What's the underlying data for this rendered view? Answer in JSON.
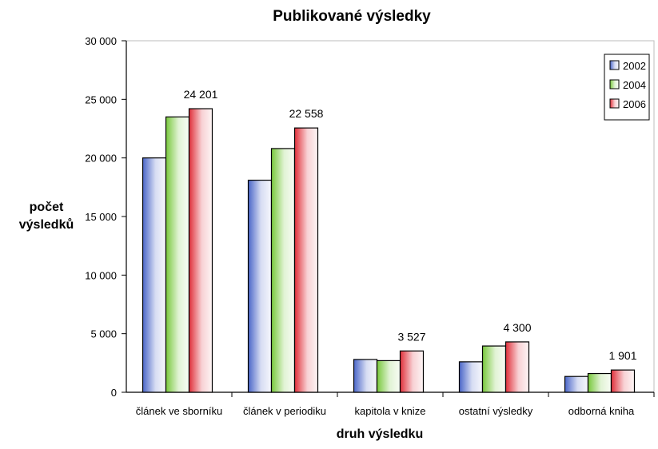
{
  "chart_data": {
    "type": "bar",
    "title": "Publikované  výsledky",
    "xlabel": "druh výsledku",
    "ylabel_lines": [
      "počet",
      "výsledků"
    ],
    "categories": [
      "článek ve sborníku",
      "článek v periodiku",
      "kapitola v knize",
      "ostatní výsledky",
      "odborná kniha"
    ],
    "series": [
      {
        "name": "2002",
        "color": "#4a66c8",
        "values": [
          20000,
          18100,
          2800,
          2600,
          1350
        ]
      },
      {
        "name": "2004",
        "color": "#78c83c",
        "values": [
          23500,
          20800,
          2700,
          3950,
          1600
        ]
      },
      {
        "name": "2006",
        "color": "#e0303a",
        "values": [
          24201,
          22558,
          3527,
          4300,
          1901
        ]
      }
    ],
    "data_labels": [
      {
        "series": "2006",
        "category": "článek ve sborníku",
        "text": "24 201"
      },
      {
        "series": "2006",
        "category": "článek v periodiku",
        "text": "22 558"
      },
      {
        "series": "2006",
        "category": "kapitola v knize",
        "text": "3 527"
      },
      {
        "series": "2006",
        "category": "ostatní výsledky",
        "text": "4 300"
      },
      {
        "series": "2006",
        "category": "odborná kniha",
        "text": "1 901"
      }
    ],
    "ylim": [
      0,
      30000
    ],
    "yticks": [
      0,
      5000,
      10000,
      15000,
      20000,
      25000,
      30000
    ],
    "ytick_labels": [
      "0",
      "5 000",
      "10 000",
      "15 000",
      "20 000",
      "25 000",
      "30 000"
    ],
    "grid": false,
    "legend_position": "top-right"
  }
}
